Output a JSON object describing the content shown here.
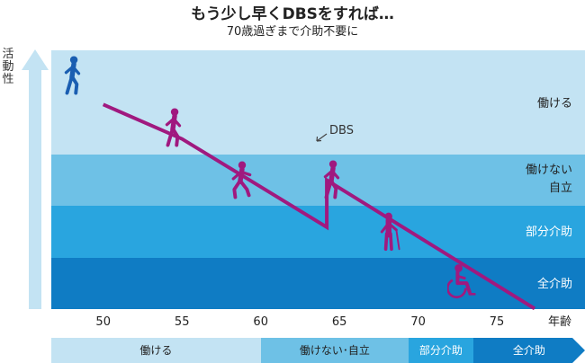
{
  "title": "もう少し早くDBSをすれば…",
  "subtitle": "70歳過ぎまで介助不要に",
  "y_axis_label_chars": [
    "活",
    "動",
    "性"
  ],
  "x_axis_label": "年齢",
  "zones": [
    {
      "label": "働ける",
      "color": "#c3e3f3"
    },
    {
      "label": "働けない\n自立",
      "color": "#6ec1e6"
    },
    {
      "label": "部分介助",
      "color": "#29a5df"
    },
    {
      "label": "全介助",
      "color": "#0f7cc4"
    }
  ],
  "dbs_label": "DBS",
  "colors": {
    "line": "#a0197f",
    "figure": "#a0197f",
    "arrow": "#c3e3f3",
    "figure_blue": "#1a5eb1"
  },
  "figure_icons": [
    "walking-person-icon",
    "walking-person-icon",
    "stumbling-person-icon",
    "walking-person-icon",
    "cane-person-icon",
    "wheelchair-icon"
  ],
  "chart_data": {
    "type": "line",
    "title": "もう少し早くDBSをすれば…",
    "subtitle": "70歳過ぎまで介助不要に",
    "xlabel": "年齢",
    "ylabel": "活動性",
    "x_ticks": [
      50,
      55,
      60,
      65,
      70,
      75
    ],
    "xlim": [
      46.7,
      80.6
    ],
    "zone_order": [
      "働ける",
      "働けない 自立",
      "部分介助",
      "全介助"
    ],
    "series": [
      {
        "x": [
          50,
          55,
          64.2,
          64.2,
          77.4
        ],
        "y": [
          3.48,
          3.15,
          1.59,
          2.5,
          0.01
        ]
      }
    ],
    "annotations": [
      {
        "text": "DBS",
        "x": 64.2
      }
    ]
  },
  "bottom_bar": [
    {
      "label": "働ける",
      "start": 46.7,
      "end": 60,
      "color": "#c3e3f3",
      "text_color": "#222222"
    },
    {
      "label": "働けない･自立",
      "start": 60,
      "end": 69.4,
      "color": "#6ec1e6",
      "text_color": "#222222"
    },
    {
      "label": "部分介助",
      "start": 69.4,
      "end": 73.5,
      "color": "#29a5df",
      "text_color": "#ffffff"
    },
    {
      "label": "全介助",
      "start": 73.5,
      "end": 80.6,
      "color": "#0f7cc4",
      "text_color": "#ffffff"
    }
  ]
}
